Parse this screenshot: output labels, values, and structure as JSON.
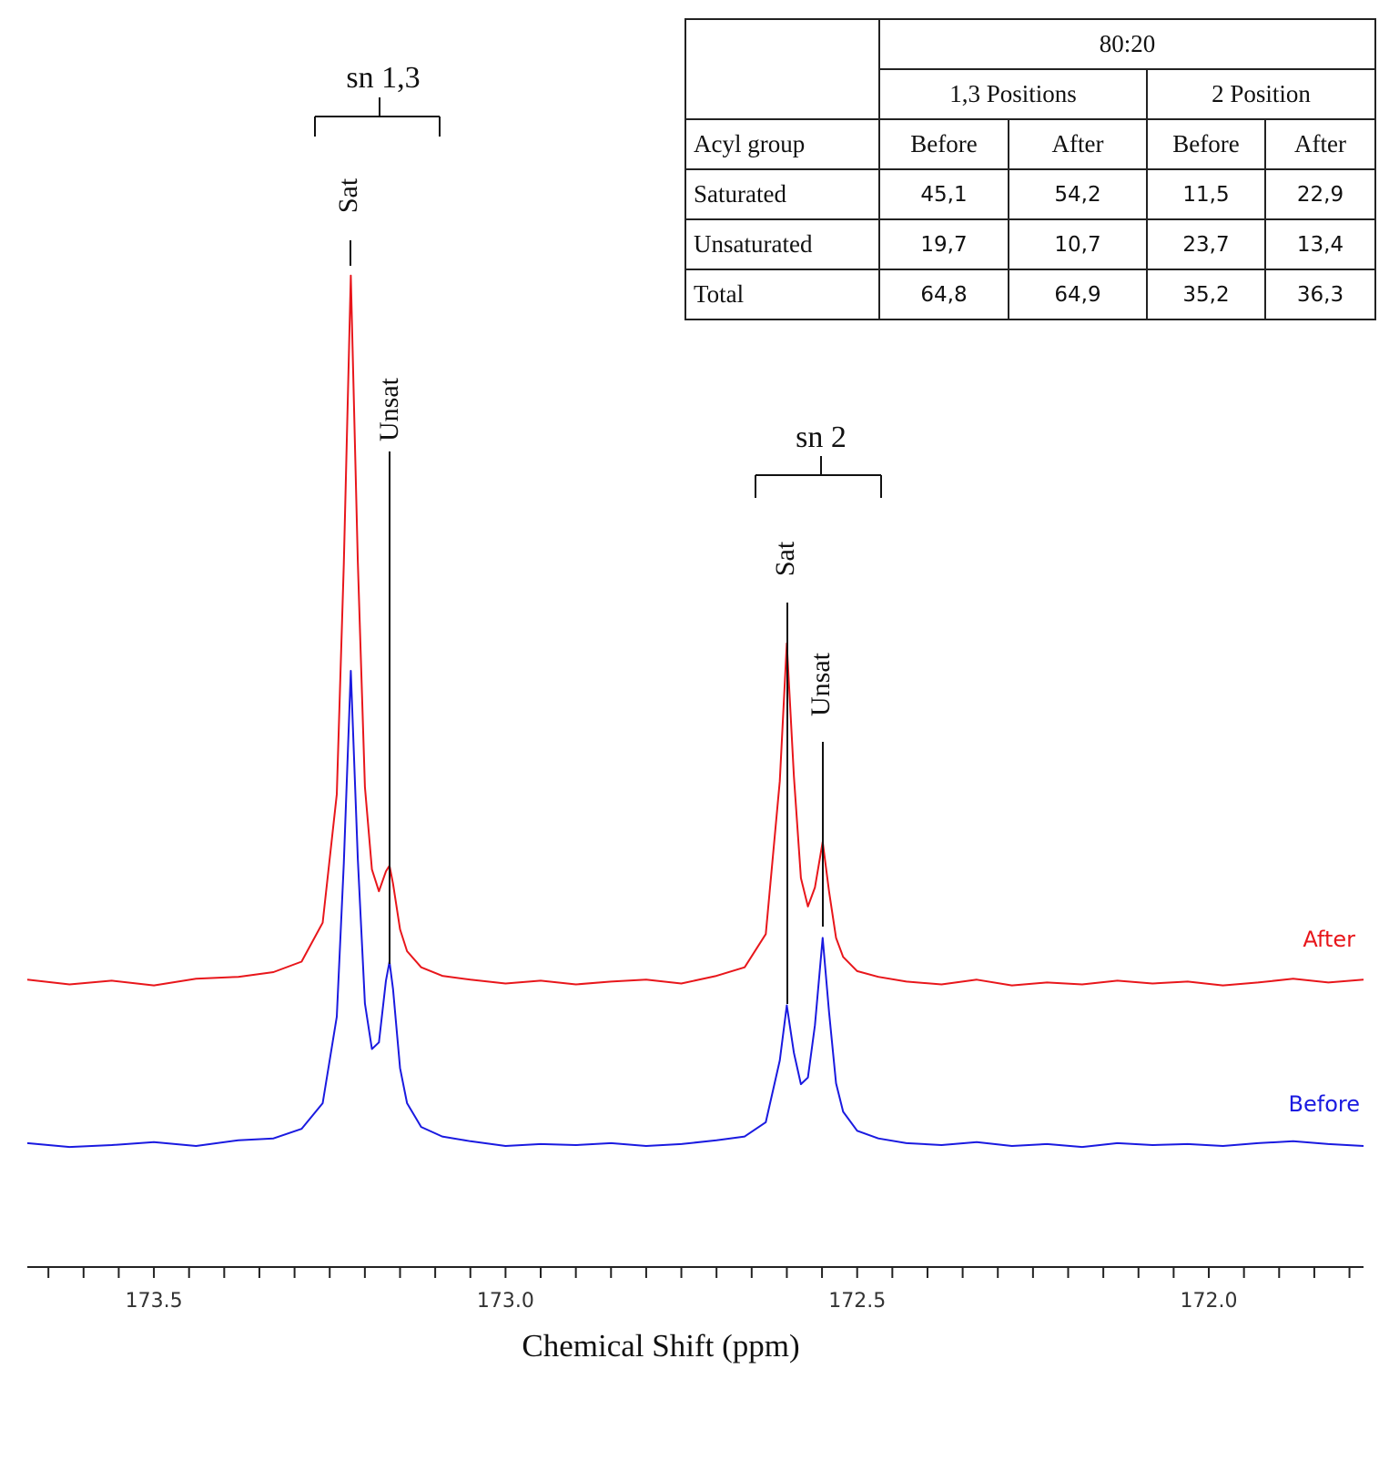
{
  "chart_data": {
    "type": "line",
    "x_label": "Chemical Shift (ppm)",
    "xlim": [
      173.68,
      171.78
    ],
    "ylim": [
      0,
      100
    ],
    "xticks": [
      173.5,
      {
        "value": 173,
        "label": "173.0"
      },
      172.5,
      {
        "value": 172,
        "label": "172.0"
      }
    ],
    "xminorticks": [
      173.65,
      173.6,
      173.55,
      173.45,
      173.4,
      173.35,
      173.3,
      173.25,
      173.2,
      173.15,
      173.1,
      173.05,
      172.95,
      172.9,
      172.85,
      172.8,
      172.75,
      172.7,
      172.65,
      172.6,
      172.55,
      172.45,
      172.4,
      172.35,
      172.3,
      172.25,
      172.2,
      172.15,
      172.1,
      172.05,
      171.95,
      171.9,
      171.85,
      171.8
    ],
    "x": [
      173.68,
      173.62,
      173.56,
      173.5,
      173.44,
      173.38,
      173.33,
      173.29,
      173.26,
      173.24,
      173.23,
      173.22,
      173.21,
      173.2,
      173.19,
      173.18,
      173.17,
      173.165,
      173.16,
      173.15,
      173.14,
      173.12,
      173.09,
      173.05,
      173.0,
      172.95,
      172.9,
      172.85,
      172.8,
      172.75,
      172.7,
      172.66,
      172.63,
      172.61,
      172.6,
      172.59,
      172.58,
      172.57,
      172.56,
      172.549,
      172.54,
      172.53,
      172.52,
      172.5,
      172.47,
      172.43,
      172.38,
      172.33,
      172.28,
      172.23,
      172.18,
      172.13,
      172.08,
      172.03,
      171.98,
      171.93,
      171.88,
      171.83,
      171.78
    ],
    "series": [
      {
        "name": "After",
        "color": "#e8161b",
        "values": [
          24.3,
          23.8,
          24.2,
          23.7,
          24.4,
          24.6,
          25.1,
          26.2,
          30.3,
          43.8,
          68.0,
          98.4,
          68.3,
          44.6,
          35.9,
          33.6,
          35.7,
          36.3,
          34.4,
          29.6,
          27.3,
          25.6,
          24.7,
          24.3,
          23.9,
          24.2,
          23.8,
          24.1,
          24.3,
          23.9,
          24.7,
          25.6,
          29.1,
          45.2,
          59.7,
          45.7,
          35.0,
          32.0,
          34.0,
          38.8,
          33.6,
          28.7,
          26.7,
          25.2,
          24.6,
          24.1,
          23.8,
          24.3,
          23.7,
          24.0,
          23.8,
          24.2,
          23.9,
          24.1,
          23.7,
          24.0,
          24.4,
          24.0,
          24.3
        ]
      },
      {
        "name": "Before",
        "color": "#1a1ae0",
        "values": [
          7.1,
          6.7,
          6.9,
          7.2,
          6.8,
          7.4,
          7.6,
          8.6,
          11.3,
          20.4,
          36.5,
          56.8,
          37.0,
          21.8,
          17.0,
          17.7,
          24.2,
          26.2,
          23.3,
          15.0,
          11.3,
          8.8,
          7.8,
          7.3,
          6.8,
          7.0,
          6.9,
          7.1,
          6.8,
          7.0,
          7.4,
          7.8,
          9.3,
          15.8,
          21.6,
          16.6,
          13.3,
          14.0,
          19.5,
          28.7,
          20.9,
          13.4,
          10.4,
          8.4,
          7.6,
          7.1,
          6.9,
          7.2,
          6.8,
          7.0,
          6.7,
          7.1,
          6.9,
          7.0,
          6.8,
          7.1,
          7.3,
          7.0,
          6.8
        ]
      }
    ],
    "annotations": [
      "sn 1,3",
      "Sat",
      "Unsat",
      "sn 2",
      "Sat",
      "Unsat"
    ]
  },
  "table": {
    "title": "80:20",
    "groups": [
      "1,3 Positions",
      "2 Position"
    ],
    "header": [
      "Acyl group",
      "Before",
      "After",
      "Before",
      "After"
    ],
    "rows": [
      [
        "Saturated",
        "45,1",
        "54,2",
        "11,5",
        "22,9"
      ],
      [
        "Unsaturated",
        "19,7",
        "10,7",
        "23,7",
        "13,4"
      ],
      [
        "Total",
        "64,8",
        "64,9",
        "35,2",
        "36,3"
      ]
    ]
  }
}
